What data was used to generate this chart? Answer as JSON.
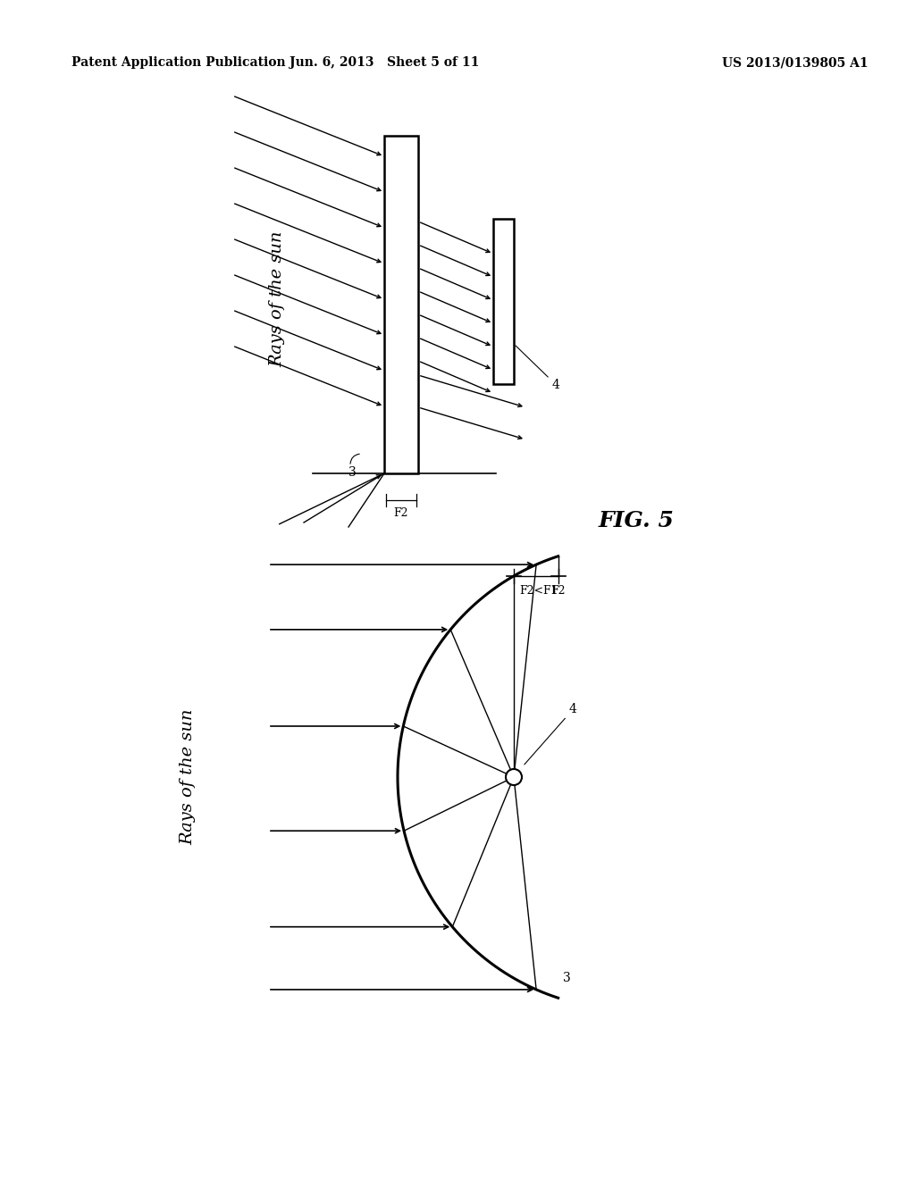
{
  "bg_color": "#ffffff",
  "header_left": "Patent Application Publication",
  "header_mid": "Jun. 6, 2013   Sheet 5 of 11",
  "header_right": "US 2013/0139805 A1",
  "fig5_label": "FIG. 5"
}
